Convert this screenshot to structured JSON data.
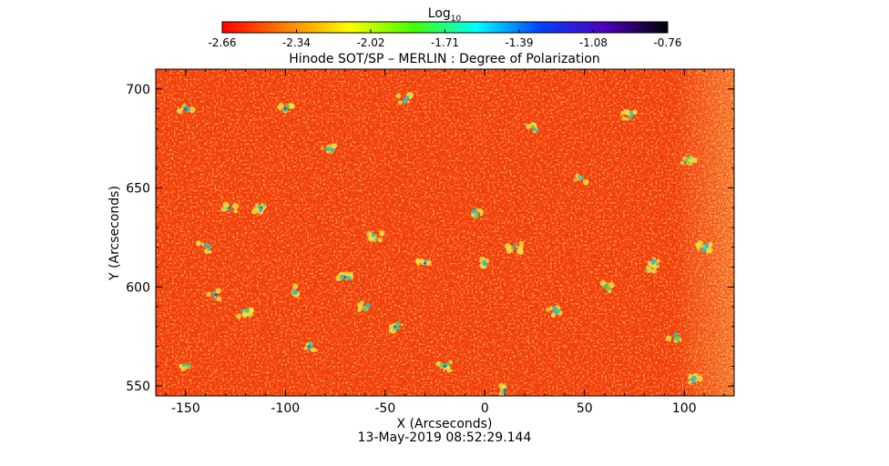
{
  "colorbar": {
    "title_base": "Log",
    "title_sub": "10",
    "ticks": [
      "-2.66",
      "-2.34",
      "-2.02",
      "-1.71",
      "-1.39",
      "-1.08",
      "-0.76"
    ],
    "colors": [
      "#ff0000",
      "#ff8000",
      "#ffff00",
      "#40ff00",
      "#00ffff",
      "#0040ff",
      "#5000c0",
      "#000000"
    ]
  },
  "title": "Hinode SOT/SP – MERLIN : Degree of Polarization",
  "axes": {
    "xlabel": "X (Arcseconds)",
    "ylabel": "Y (Arcseconds)",
    "xticks": [
      "-150",
      "-100",
      "-50",
      "0",
      "50",
      "100"
    ],
    "yticks": [
      "550",
      "600",
      "650",
      "700"
    ],
    "xlim": [
      -165,
      125
    ],
    "ylim": [
      545,
      710
    ]
  },
  "timestamp": "13-May-2019 08:52:29.144",
  "map_colors": {
    "base": "#f23a0a",
    "dark": "#e8200a",
    "mid": "#ff7a10",
    "bright": "#ffb020",
    "yellow": "#f0e040",
    "green": "#50d060",
    "cyan": "#30c0c0",
    "blue": "#2050ff"
  }
}
